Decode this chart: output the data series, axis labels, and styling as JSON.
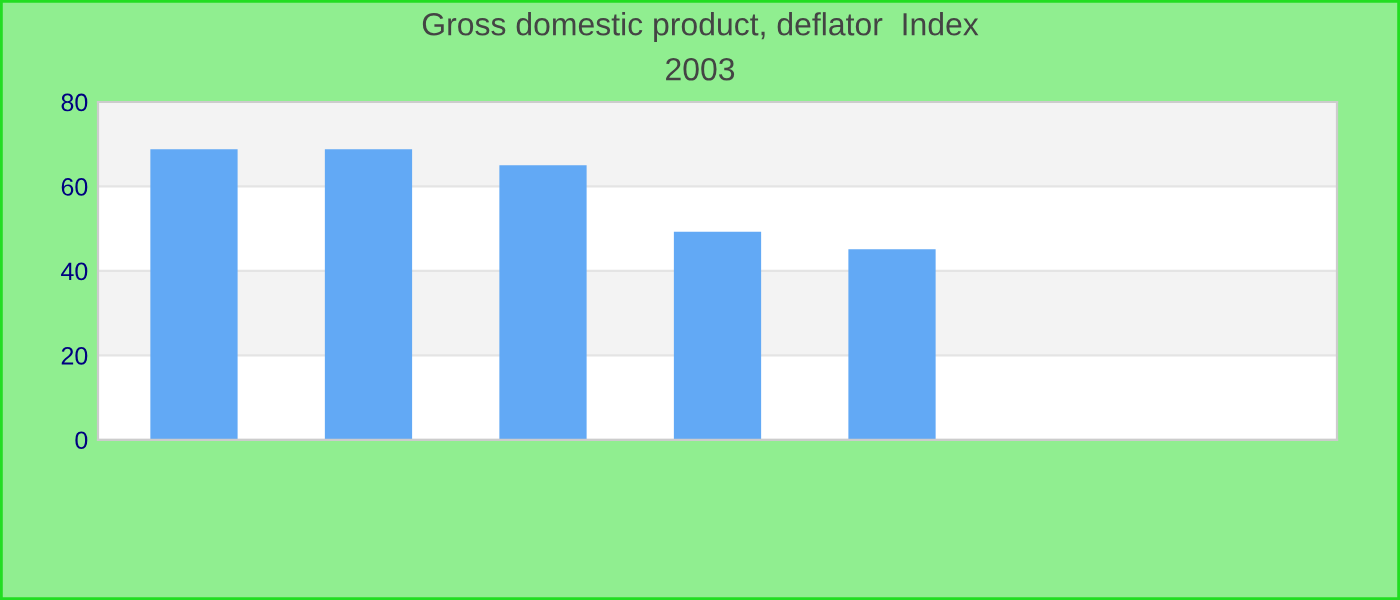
{
  "chart_data": {
    "type": "bar",
    "title": "Gross domestic product, deflator  Index",
    "subtitle": "2003",
    "categories": [
      null,
      null,
      null,
      null,
      null,
      null,
      null
    ],
    "values": [
      68.8,
      68.8,
      65.0,
      49.3,
      45.1,
      null,
      null
    ],
    "color": "#62a9f5",
    "ylim": [
      0,
      80
    ],
    "yticks": [
      0,
      20,
      40,
      60,
      80
    ],
    "grid": "y",
    "legend": false
  }
}
